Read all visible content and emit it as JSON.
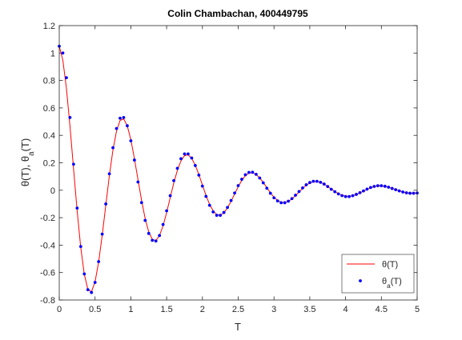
{
  "chart_data": {
    "type": "line",
    "title": "Colin Chambachan, 400449795",
    "xlabel": "T",
    "ylabel": "θ(T), θ_a(T)",
    "x": [
      0,
      0.05,
      0.1,
      0.15,
      0.2,
      0.25,
      0.3,
      0.35,
      0.4,
      0.45,
      0.5,
      0.55,
      0.6,
      0.65,
      0.7,
      0.75,
      0.8,
      0.85,
      0.9,
      0.95,
      1,
      1.05,
      1.1,
      1.15,
      1.2,
      1.25,
      1.3,
      1.35,
      1.4,
      1.45,
      1.5,
      1.55,
      1.6,
      1.65,
      1.7,
      1.75,
      1.8,
      1.85,
      1.9,
      1.95,
      2,
      2.05,
      2.1,
      2.15,
      2.2,
      2.25,
      2.3,
      2.35,
      2.4,
      2.45,
      2.5,
      2.55,
      2.6,
      2.65,
      2.7,
      2.75,
      2.8,
      2.85,
      2.9,
      2.95,
      3,
      3.05,
      3.1,
      3.15,
      3.2,
      3.25,
      3.3,
      3.35,
      3.4,
      3.45,
      3.5,
      3.55,
      3.6,
      3.65,
      3.7,
      3.75,
      3.8,
      3.85,
      3.9,
      3.95,
      4,
      4.05,
      4.1,
      4.15,
      4.2,
      4.25,
      4.3,
      4.35,
      4.4,
      4.45,
      4.5,
      4.55,
      4.6,
      4.65,
      4.7,
      4.75,
      4.8,
      4.85,
      4.9,
      4.95,
      5
    ],
    "series": [
      {
        "name": "θ(T)",
        "color": "#ff0000",
        "style": "line",
        "values": [
          1.05,
          0.949,
          0.744,
          0.467,
          0.156,
          -0.15,
          -0.416,
          -0.612,
          -0.723,
          -0.74,
          -0.668,
          -0.524,
          -0.329,
          -0.11,
          0.106,
          0.293,
          0.431,
          0.509,
          0.52,
          0.47,
          0.369,
          0.231,
          0.077,
          -0.074,
          -0.206,
          -0.303,
          -0.358,
          -0.367,
          -0.331,
          -0.26,
          -0.163,
          -0.054,
          0.053,
          0.145,
          0.214,
          0.252,
          0.258,
          0.233,
          0.183,
          0.115,
          0.038,
          -0.037,
          -0.102,
          -0.15,
          -0.178,
          -0.182,
          -0.164,
          -0.129,
          -0.081,
          -0.027,
          0.026,
          0.072,
          0.106,
          0.125,
          0.128,
          0.115,
          0.091,
          0.057,
          0.019,
          -0.018,
          -0.051,
          -0.074,
          -0.088,
          -0.09,
          -0.081,
          -0.064,
          -0.04,
          -0.013,
          0.013,
          0.036,
          0.053,
          0.062,
          0.063,
          0.057,
          0.045,
          0.028,
          0.009,
          -0.009,
          -0.025,
          -0.037,
          -0.044,
          -0.045,
          -0.04,
          -0.032,
          -0.02,
          -0.007,
          0.006,
          0.018,
          0.026,
          0.031,
          0.031,
          0.028,
          0.022,
          0.014,
          0.005,
          -0.004,
          -0.012,
          -0.018,
          -0.022,
          -0.022,
          -0.02
        ]
      },
      {
        "name": "θ_a(T)",
        "color": "#0000ff",
        "style": "dots",
        "values": [
          1.05,
          1.0,
          0.82,
          0.53,
          0.19,
          -0.13,
          -0.41,
          -0.61,
          -0.725,
          -0.745,
          -0.672,
          -0.52,
          -0.32,
          -0.1,
          0.12,
          0.31,
          0.45,
          0.525,
          0.53,
          0.47,
          0.36,
          0.22,
          0.06,
          -0.09,
          -0.22,
          -0.315,
          -0.365,
          -0.37,
          -0.33,
          -0.25,
          -0.15,
          -0.04,
          0.07,
          0.16,
          0.23,
          0.265,
          0.265,
          0.235,
          0.18,
          0.11,
          0.03,
          -0.045,
          -0.11,
          -0.158,
          -0.183,
          -0.183,
          -0.162,
          -0.125,
          -0.075,
          -0.02,
          0.034,
          0.08,
          0.113,
          0.13,
          0.131,
          0.116,
          0.089,
          0.054,
          0.015,
          -0.022,
          -0.055,
          -0.078,
          -0.091,
          -0.091,
          -0.08,
          -0.061,
          -0.036,
          -0.009,
          0.017,
          0.04,
          0.056,
          0.065,
          0.065,
          0.058,
          0.045,
          0.027,
          0.007,
          -0.011,
          -0.027,
          -0.039,
          -0.046,
          -0.046,
          -0.04,
          -0.03,
          -0.018,
          -0.005,
          0.008,
          0.02,
          0.028,
          0.033,
          0.033,
          0.029,
          0.022,
          0.013,
          0.004,
          -0.005,
          -0.013,
          -0.019,
          -0.022,
          -0.022,
          -0.02
        ]
      }
    ],
    "xlim": [
      0,
      5
    ],
    "ylim": [
      -0.8,
      1.2
    ],
    "xticks": [
      0,
      0.5,
      1,
      1.5,
      2,
      2.5,
      3,
      3.5,
      4,
      4.5,
      5
    ],
    "yticks": [
      -0.8,
      -0.6,
      -0.4,
      -0.2,
      0,
      0.2,
      0.4,
      0.6,
      0.8,
      1,
      1.2
    ],
    "legend": "lower right"
  }
}
